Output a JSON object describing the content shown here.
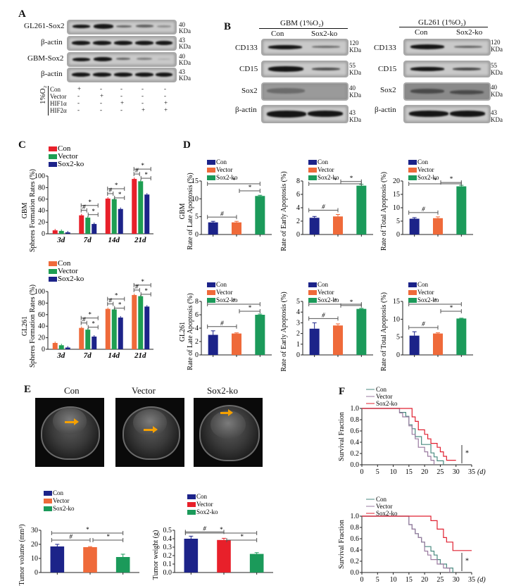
{
  "panels": {
    "A": {
      "label": "A",
      "rows": [
        {
          "name": "GL261-Sox2",
          "kda": "40",
          "unit": "KDa"
        },
        {
          "name": "β-actin",
          "kda": "43",
          "unit": "KDa"
        },
        {
          "name": "GBM-Sox2",
          "kda": "40",
          "unit": "KDa"
        },
        {
          "name": "β-actin",
          "kda": "43",
          "unit": "KDa"
        }
      ],
      "condition_label": "1%O₂",
      "conditions": [
        {
          "name": "Con",
          "marks": [
            "+",
            "-",
            "-",
            "-",
            "-"
          ]
        },
        {
          "name": "Vector",
          "marks": [
            "-",
            "+",
            "-",
            "-",
            "-"
          ]
        },
        {
          "name": "HIF1α",
          "marks": [
            "-",
            "-",
            "+",
            "-",
            "+"
          ]
        },
        {
          "name": "HIF2α",
          "marks": [
            "-",
            "-",
            "-",
            "+",
            "+"
          ]
        }
      ]
    },
    "B": {
      "label": "B",
      "blots": [
        {
          "title": "GBM (1%O₂)",
          "lanes": [
            "Con",
            "Sox2-ko"
          ],
          "rows": [
            {
              "name": "CD133",
              "kda": "120",
              "unit": "KDa"
            },
            {
              "name": "CD15",
              "kda": "55",
              "unit": "KDa"
            },
            {
              "name": "Sox2",
              "kda": "40",
              "unit": "KDa"
            },
            {
              "name": "β-actin",
              "kda": "43",
              "unit": "KDa"
            }
          ]
        },
        {
          "title": "GL261 (1%O₂)",
          "lanes": [
            "Con",
            "Sox2-ko"
          ],
          "rows": [
            {
              "name": "CD133",
              "kda": "120",
              "unit": "KDa"
            },
            {
              "name": "CD15",
              "kda": "55",
              "unit": "KDa"
            },
            {
              "name": "Sox2",
              "kda": "40",
              "unit": "KDa"
            },
            {
              "name": "β-actin",
              "kda": "43",
              "unit": "KDa"
            }
          ]
        }
      ]
    },
    "C": {
      "label": "C"
    },
    "D": {
      "label": "D"
    },
    "E": {
      "label": "E",
      "images": [
        "Con",
        "Vector",
        "Sox2-ko"
      ]
    },
    "F": {
      "label": "F"
    }
  },
  "colors": {
    "con_red": "#e8202a",
    "vector_green": "#1e9e52",
    "sox2_blue": "#1c2389",
    "navy": "#1c2389",
    "orange": "#ef6a3a",
    "green": "#1b9a5a",
    "red": "#e8202a",
    "km_con": "#4a8a80",
    "km_vector": "#9a7aa0",
    "km_sox2": "#e02030",
    "arrow": "#f5a000"
  },
  "chart_data": [
    {
      "id": "C-GBM",
      "type": "bar",
      "title": "",
      "ylabel": "GBM Spheres Formation Rates (%)",
      "xlabel": "",
      "categories": [
        "3d",
        "7d",
        "14d",
        "21d"
      ],
      "ylim": [
        0,
        100
      ],
      "yticks": [
        0,
        20,
        40,
        60,
        80,
        100
      ],
      "legend": [
        "Con",
        "Vector",
        "Sox2-ko"
      ],
      "series": [
        {
          "name": "Con",
          "color": "#e8202a",
          "values": [
            6,
            32,
            61,
            95
          ]
        },
        {
          "name": "Vector",
          "color": "#1e9e52",
          "values": [
            5,
            28,
            60,
            91
          ]
        },
        {
          "name": "Sox2-ko",
          "color": "#1c2389",
          "values": [
            2.5,
            17,
            43,
            68
          ]
        }
      ],
      "annotations": [
        "#",
        "*",
        "*"
      ]
    },
    {
      "id": "C-GL261",
      "type": "bar",
      "ylabel": "GL261 Spheres Formation Rates (%)",
      "categories": [
        "3d",
        "7d",
        "14d",
        "21d"
      ],
      "ylim": [
        0,
        100
      ],
      "yticks": [
        0,
        20,
        40,
        60,
        80,
        100
      ],
      "legend": [
        "Con",
        "Vector",
        "Sox2-ko"
      ],
      "series": [
        {
          "name": "Con",
          "color": "#ef6a3a",
          "values": [
            11,
            37,
            70,
            94
          ]
        },
        {
          "name": "Vector",
          "color": "#1e9e52",
          "values": [
            7,
            34,
            69,
            92
          ]
        },
        {
          "name": "Sox2-ko",
          "color": "#1c2389",
          "values": [
            3,
            22,
            55,
            74
          ]
        }
      ]
    },
    {
      "id": "D-GBM-late",
      "type": "bar",
      "ylabel": "GBM Rate of Late Apoptosis (%)",
      "categories": [
        "Con",
        "Vector",
        "Sox2-ko"
      ],
      "values": [
        3.4,
        3.4,
        10.8
      ],
      "errors": [
        0.3,
        0.3,
        0.2
      ],
      "ylim": [
        0,
        15
      ],
      "yticks": [
        0,
        5,
        10,
        15
      ]
    },
    {
      "id": "D-GBM-early",
      "type": "bar",
      "ylabel": "Rate of Early Apoptosis (%)",
      "categories": [
        "Con",
        "Vector",
        "Sox2-ko"
      ],
      "values": [
        2.5,
        2.7,
        7.3
      ],
      "errors": [
        0.2,
        0.3,
        0.2
      ],
      "ylim": [
        0,
        8
      ],
      "yticks": [
        0,
        2,
        4,
        6,
        8
      ]
    },
    {
      "id": "D-GBM-total",
      "type": "bar",
      "ylabel": "Rate of Total Apoptosis (%)",
      "categories": [
        "Con",
        "Vector",
        "Sox2-ko"
      ],
      "values": [
        5.9,
        6.1,
        18
      ],
      "errors": [
        0.4,
        0.5,
        0.4
      ],
      "ylim": [
        0,
        20
      ],
      "yticks": [
        0,
        5,
        10,
        15,
        20
      ]
    },
    {
      "id": "D-GL261-late",
      "type": "bar",
      "ylabel": "GL261 Rate of Late Apoptosis (%)",
      "categories": [
        "Con",
        "Vector",
        "Sox2-ko"
      ],
      "values": [
        3.0,
        3.2,
        6.0
      ],
      "errors": [
        0.6,
        0.1,
        0.1
      ],
      "ylim": [
        0,
        8
      ],
      "yticks": [
        0,
        2,
        4,
        6,
        8
      ]
    },
    {
      "id": "D-GL261-early",
      "type": "bar",
      "ylabel": "Rate of Early Apoptosis (%)",
      "categories": [
        "Con",
        "Vector",
        "Sox2-ko"
      ],
      "values": [
        2.45,
        2.75,
        4.3
      ],
      "errors": [
        0.55,
        0.15,
        0.05
      ],
      "ylim": [
        0,
        5
      ],
      "yticks": [
        0,
        1,
        2,
        3,
        4,
        5
      ]
    },
    {
      "id": "D-GL261-total",
      "type": "bar",
      "ylabel": "Rate of Total Apoptosis (%)",
      "categories": [
        "Con",
        "Vector",
        "Sox2-ko"
      ],
      "values": [
        5.4,
        6.0,
        10.2
      ],
      "errors": [
        1.1,
        0.2,
        0.1
      ],
      "ylim": [
        0,
        15
      ],
      "yticks": [
        0,
        5,
        10,
        15
      ]
    },
    {
      "id": "E-volume",
      "type": "bar",
      "ylabel": "Tumor volume (mm³)",
      "categories": [
        "Con",
        "Vector",
        "Sox2-ko"
      ],
      "values": [
        18.5,
        18,
        11
      ],
      "errors": [
        1.5,
        0.4,
        2
      ],
      "colors": [
        "#1c2389",
        "#ef6a3a",
        "#1b9a5a"
      ],
      "ylim": [
        0,
        30
      ],
      "yticks": [
        0,
        10,
        20,
        30
      ]
    },
    {
      "id": "E-weight",
      "type": "bar",
      "ylabel": "Tumor weight (g)",
      "categories": [
        "Con",
        "Vector",
        "Sox2-ko"
      ],
      "values": [
        0.4,
        0.385,
        0.22
      ],
      "errors": [
        0.03,
        0.02,
        0.015
      ],
      "colors": [
        "#1c2389",
        "#e8202a",
        "#1b9a5a"
      ],
      "ylim": [
        0,
        0.5
      ],
      "yticks": [
        0.0,
        0.1,
        0.2,
        0.3,
        0.4,
        0.5
      ]
    },
    {
      "id": "F-top",
      "type": "line",
      "ylabel": "Survival Fraction",
      "xlabel": "(d)",
      "xlim": [
        0,
        35
      ],
      "ylim": [
        0,
        1
      ],
      "xticks": [
        0,
        5,
        10,
        15,
        20,
        25,
        30,
        35
      ],
      "yticks": [
        0.0,
        0.2,
        0.4,
        0.6,
        0.8,
        1.0
      ],
      "series": [
        {
          "name": "Con",
          "color": "#4a8a80",
          "x": [
            0,
            12,
            14,
            15,
            16,
            17,
            19,
            21,
            22,
            23,
            24,
            26
          ],
          "y": [
            1,
            0.93,
            0.86,
            0.71,
            0.64,
            0.5,
            0.36,
            0.36,
            0.21,
            0.14,
            0.07,
            0
          ]
        },
        {
          "name": "Vector",
          "color": "#9a7aa0",
          "x": [
            0,
            12,
            13,
            15,
            16,
            17,
            18,
            20,
            21,
            22,
            23
          ],
          "y": [
            1,
            0.92,
            0.85,
            0.69,
            0.54,
            0.46,
            0.31,
            0.23,
            0.15,
            0.08,
            0
          ]
        },
        {
          "name": "Sox2-ko",
          "color": "#e02030",
          "x": [
            0,
            16,
            17,
            18,
            20,
            21,
            22,
            24,
            25,
            26,
            27,
            28,
            30
          ],
          "y": [
            1,
            0.85,
            0.77,
            0.62,
            0.54,
            0.46,
            0.38,
            0.31,
            0.23,
            0.15,
            0.08,
            0.08,
            0.08
          ]
        }
      ]
    },
    {
      "id": "F-bottom",
      "type": "line",
      "ylabel": "Survival Fraction",
      "xlabel": "(d)",
      "xlim": [
        0,
        35
      ],
      "ylim": [
        0,
        1
      ],
      "xticks": [
        0,
        5,
        10,
        15,
        20,
        25,
        30,
        35
      ],
      "yticks": [
        0.0,
        0.2,
        0.4,
        0.6,
        0.8,
        1.0
      ],
      "series": [
        {
          "name": "Con",
          "color": "#4a8a80",
          "x": [
            0,
            15,
            16,
            17,
            18,
            19,
            20,
            21,
            22,
            23,
            24,
            25,
            27,
            29
          ],
          "y": [
            1,
            0.85,
            0.77,
            0.69,
            0.62,
            0.54,
            0.46,
            0.46,
            0.38,
            0.31,
            0.23,
            0.15,
            0.08,
            0
          ]
        },
        {
          "name": "Vector",
          "color": "#9a7aa0",
          "x": [
            0,
            15,
            16,
            17,
            18,
            19,
            20,
            21,
            22,
            23,
            24,
            26,
            28
          ],
          "y": [
            1,
            0.85,
            0.77,
            0.69,
            0.62,
            0.54,
            0.38,
            0.31,
            0.23,
            0.23,
            0.15,
            0.08,
            0
          ]
        },
        {
          "name": "Sox2-ko",
          "color": "#e02030",
          "x": [
            0,
            22,
            24,
            26,
            27,
            29,
            35
          ],
          "y": [
            1,
            0.92,
            0.77,
            0.62,
            0.54,
            0.39,
            0.39
          ]
        }
      ]
    }
  ]
}
